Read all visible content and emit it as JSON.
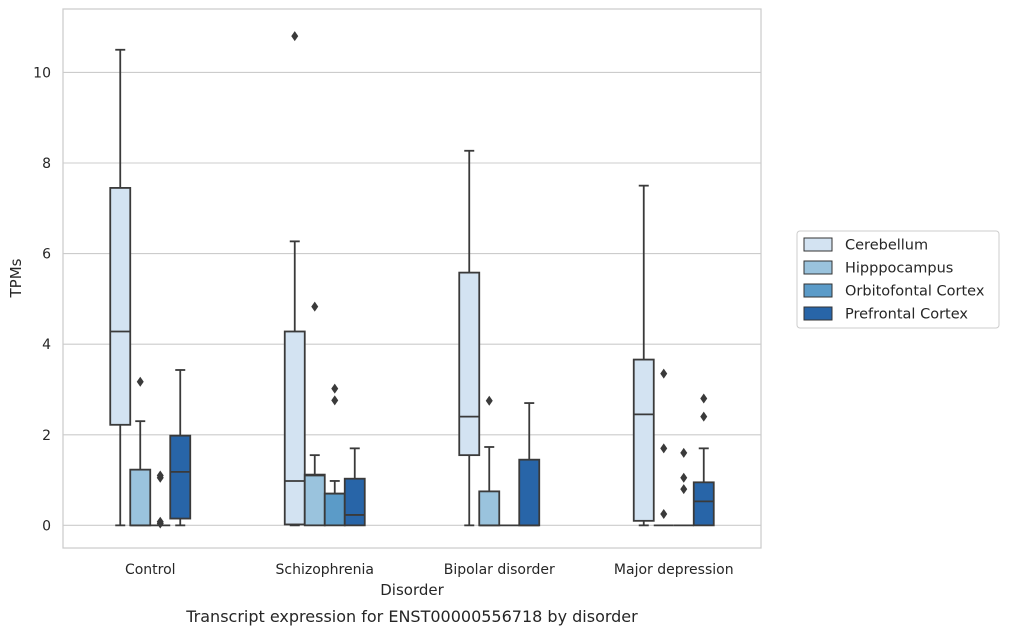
{
  "chart_data": {
    "type": "box",
    "title": "",
    "caption": "Transcript expression for ENST00000556718 by disorder",
    "xlabel": "Disorder",
    "ylabel": "TPMs",
    "ylim": [
      -0.5,
      11.4
    ],
    "yticks": [
      0,
      2,
      4,
      6,
      8,
      10
    ],
    "grid": "horizontal",
    "legend_position": "right",
    "categories": [
      "Control",
      "Schizophrenia",
      "Bipolar disorder",
      "Major depression"
    ],
    "series": [
      {
        "name": "Cerebellum",
        "color": "#d3e3f2",
        "boxes": [
          {
            "category": "Control",
            "whisker_low": 0,
            "q1": 2.22,
            "median": 4.28,
            "q3": 7.45,
            "whisker_high": 10.5,
            "outliers": []
          },
          {
            "category": "Schizophrenia",
            "whisker_low": 0,
            "q1": 0.02,
            "median": 0.98,
            "q3": 4.28,
            "whisker_high": 6.27,
            "outliers": [
              10.8
            ]
          },
          {
            "category": "Bipolar disorder",
            "whisker_low": 0,
            "q1": 1.55,
            "median": 2.4,
            "q3": 5.58,
            "whisker_high": 8.27,
            "outliers": []
          },
          {
            "category": "Major depression",
            "whisker_low": 0,
            "q1": 0.1,
            "median": 2.45,
            "q3": 3.66,
            "whisker_high": 7.5,
            "outliers": []
          }
        ]
      },
      {
        "name": "Hipppocampus",
        "color": "#9ac3dd",
        "boxes": [
          {
            "category": "Control",
            "whisker_low": 0,
            "q1": 0,
            "median": 0,
            "q3": 1.23,
            "whisker_high": 2.3,
            "outliers": [
              3.17
            ]
          },
          {
            "category": "Schizophrenia",
            "whisker_low": 0,
            "q1": 0,
            "median": 1.1,
            "q3": 1.12,
            "whisker_high": 1.55,
            "outliers": [
              4.83
            ]
          },
          {
            "category": "Bipolar disorder",
            "whisker_low": 0,
            "q1": 0,
            "median": 0,
            "q3": 0.75,
            "whisker_high": 1.73,
            "outliers": [
              2.75
            ]
          },
          {
            "category": "Major depression",
            "whisker_low": 0,
            "q1": 0,
            "median": 0,
            "q3": 0,
            "whisker_high": 0,
            "outliers": [
              3.35,
              1.7,
              0.25
            ]
          }
        ]
      },
      {
        "name": "Orbitofontal Cortex",
        "color": "#5b9bc8",
        "boxes": [
          {
            "category": "Control",
            "whisker_low": 0,
            "q1": 0,
            "median": 0,
            "q3": 0,
            "whisker_high": 0,
            "outliers": [
              1.1,
              1.05,
              0.08,
              0.04
            ]
          },
          {
            "category": "Schizophrenia",
            "whisker_low": 0,
            "q1": 0,
            "median": 0.7,
            "q3": 0.7,
            "whisker_high": 0.98,
            "outliers": [
              3.02,
              2.76
            ]
          },
          {
            "category": "Bipolar disorder",
            "whisker_low": 0,
            "q1": 0,
            "median": 0,
            "q3": 0,
            "whisker_high": 0,
            "outliers": []
          },
          {
            "category": "Major depression",
            "whisker_low": 0,
            "q1": 0,
            "median": 0,
            "q3": 0,
            "whisker_high": 0,
            "outliers": [
              1.6,
              1.05,
              0.8
            ]
          }
        ]
      },
      {
        "name": "Prefrontal Cortex",
        "color": "#2865a8",
        "boxes": [
          {
            "category": "Control",
            "whisker_low": 0,
            "q1": 0.15,
            "median": 1.18,
            "q3": 1.98,
            "whisker_high": 3.43,
            "outliers": []
          },
          {
            "category": "Schizophrenia",
            "whisker_low": 0,
            "q1": 0,
            "median": 0.23,
            "q3": 1.03,
            "whisker_high": 1.7,
            "outliers": []
          },
          {
            "category": "Bipolar disorder",
            "whisker_low": 0,
            "q1": 0,
            "median": 0,
            "q3": 1.45,
            "whisker_high": 2.7,
            "outliers": []
          },
          {
            "category": "Major depression",
            "whisker_low": 0,
            "q1": 0,
            "median": 0.53,
            "q3": 0.95,
            "whisker_high": 1.7,
            "outliers": [
              2.8,
              2.4
            ]
          }
        ]
      }
    ]
  }
}
